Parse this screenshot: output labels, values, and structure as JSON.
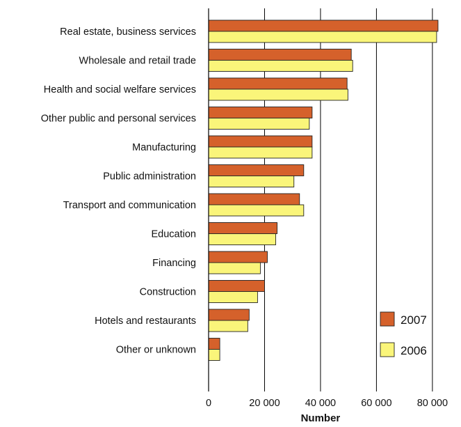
{
  "chart_data": {
    "type": "bar",
    "orientation": "horizontal",
    "categories": [
      "Real estate, business services",
      "Wholesale and retail trade",
      "Health and social welfare services",
      "Other public and personal services",
      "Manufacturing",
      "Public administration",
      "Transport and communication",
      "Education",
      "Financing",
      "Construction",
      "Hotels and restaurants",
      "Other or unknown"
    ],
    "series": [
      {
        "name": "2007",
        "color": "#D5612B",
        "values": [
          82000,
          51000,
          49500,
          37000,
          37000,
          34000,
          32500,
          24500,
          21000,
          20000,
          14500,
          4000
        ]
      },
      {
        "name": "2006",
        "color": "#FAF57A",
        "values": [
          81500,
          51500,
          49800,
          36000,
          37000,
          30500,
          34000,
          24000,
          18500,
          17500,
          14000,
          4000
        ]
      }
    ],
    "xlabel": "Number",
    "xlim": [
      0,
      85000
    ],
    "xticks": [
      0,
      20000,
      40000,
      60000,
      80000
    ],
    "xtick_labels": [
      "0",
      "20 000",
      "40 000",
      "60 000",
      "80 000"
    ],
    "grid": "vertical",
    "legend_position": "bottom-right"
  }
}
